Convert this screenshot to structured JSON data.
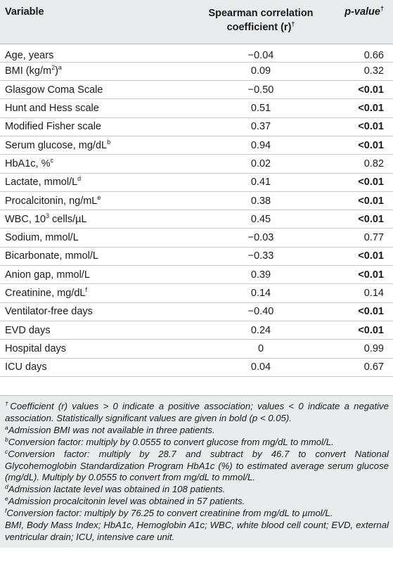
{
  "table": {
    "headers": {
      "variable": "Variable",
      "r_line1": "Spearman correlation",
      "r_line2": "coefficient (r)",
      "r_mark": "†",
      "p": "p-value",
      "p_mark": "†"
    },
    "rows": [
      {
        "variable": "Age, years",
        "sup": "",
        "r": "−0.04",
        "p": "0.66",
        "significant": false
      },
      {
        "variable": "BMI (kg/m",
        "sup2": "2",
        "variable_tail": ")",
        "sup": "a",
        "r": "0.09",
        "p": "0.32",
        "significant": false
      },
      {
        "variable": "Glasgow Coma Scale",
        "sup": "",
        "r": "−0.50",
        "p": "<0.01",
        "significant": true
      },
      {
        "variable": "Hunt and Hess scale",
        "sup": "",
        "r": "0.51",
        "p": "<0.01",
        "significant": true
      },
      {
        "variable": "Modified Fisher scale",
        "sup": "",
        "r": "0.37",
        "p": "<0.01",
        "significant": true
      },
      {
        "variable": "Serum glucose, mg/dL",
        "sup": "b",
        "r": "0.94",
        "p": "<0.01",
        "significant": true
      },
      {
        "variable": "HbA1c, %",
        "sup": "c",
        "r": "0.02",
        "p": "0.82",
        "significant": false
      },
      {
        "variable": "Lactate, mmol/L",
        "sup": "d",
        "r": "0.41",
        "p": "<0.01",
        "significant": true
      },
      {
        "variable": "Procalcitonin, ng/mL",
        "sup": "e",
        "r": "0.38",
        "p": "<0.01",
        "significant": true
      },
      {
        "variable": "WBC, 10",
        "sup2": "3",
        "variable_tail": " cells/µL",
        "sup": "",
        "r": "0.45",
        "p": "<0.01",
        "significant": true
      },
      {
        "variable": "Sodium, mmol/L",
        "sup": "",
        "r": "−0.03",
        "p": "0.77",
        "significant": false
      },
      {
        "variable": "Bicarbonate, mmol/L",
        "sup": "",
        "r": "−0.33",
        "p": "<0.01",
        "significant": true
      },
      {
        "variable": "Anion gap, mmol/L",
        "sup": "",
        "r": "0.39",
        "p": "<0.01",
        "significant": true
      },
      {
        "variable": "Creatinine, mg/dL",
        "sup": "f",
        "r": "0.14",
        "p": "0.14",
        "significant": false
      },
      {
        "variable": "Ventilator-free days",
        "sup": "",
        "r": "−0.40",
        "p": "<0.01",
        "significant": true
      },
      {
        "variable": "EVD days",
        "sup": "",
        "r": "0.24",
        "p": "<0.01",
        "significant": true
      },
      {
        "variable": "Hospital days",
        "sup": "",
        "r": "0",
        "p": "0.99",
        "significant": false
      },
      {
        "variable": "ICU days",
        "sup": "",
        "r": "0.04",
        "p": "0.67",
        "significant": false
      }
    ]
  },
  "footnotes": [
    {
      "mark": "†",
      "text": "Coefficient (r) values > 0 indicate a positive association; values < 0 indicate a negative association. Statistically significant values are given in bold (p < 0.05)."
    },
    {
      "mark": "a",
      "text": "Admission BMI was not available in three patients."
    },
    {
      "mark": "b",
      "text": "Conversion factor: multiply by 0.0555 to convert glucose from mg/dL to mmol/L."
    },
    {
      "mark": "c",
      "text": "Conversion factor: multiply by 28.7 and subtract by 46.7 to convert National Glycohemoglobin Standardization Program HbA1c (%) to estimated average serum glucose (mg/dL). Multiply by 0.0555 to convert from mg/dL to mmol/L."
    },
    {
      "mark": "d",
      "text": "Admission lactate level was obtained in 108 patients."
    },
    {
      "mark": "e",
      "text": "Admission procalcitonin level was obtained in 57 patients."
    },
    {
      "mark": "f",
      "text": "Conversion factor: multiply by 76.25 to convert creatinine from mg/dL to µmol/L."
    },
    {
      "mark": "",
      "text": "BMI, Body Mass Index; HbA1c, Hemoglobin A1c; WBC, white blood cell count; EVD, external ventricular drain; ICU, intensive care unit."
    }
  ]
}
